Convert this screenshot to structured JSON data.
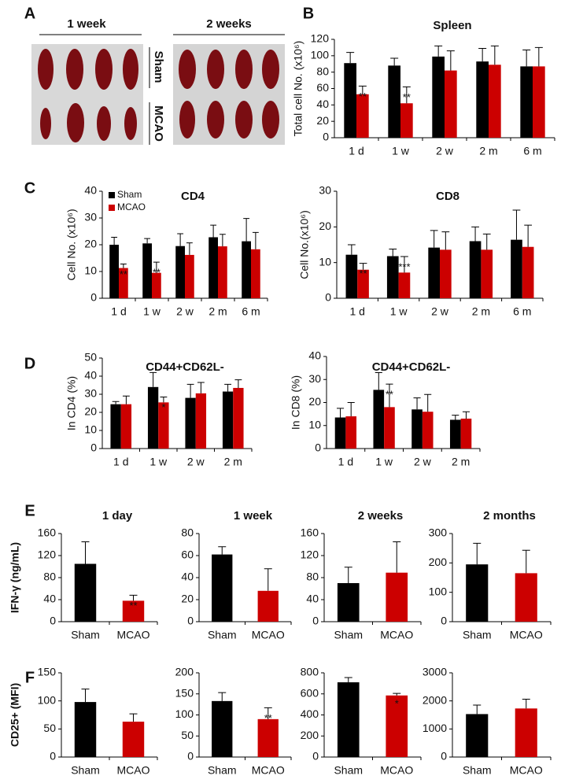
{
  "panel_labels": [
    "A",
    "B",
    "C",
    "D",
    "E",
    "F"
  ],
  "photo": {
    "columns": [
      "1 week",
      "2 weeks"
    ],
    "rows": [
      "Sham",
      "MCAO"
    ]
  },
  "chart_data": [
    {
      "type": "bar",
      "title": "Spleen",
      "y_label": "Total cell No. (x10⁶)",
      "categories": [
        "1 d",
        "1 w",
        "2 w",
        "2 m",
        "6 m"
      ],
      "series": [
        {
          "color": "#000000",
          "values": [
            91,
            88,
            99,
            93,
            87
          ],
          "errors": [
            13,
            9,
            13,
            16,
            20
          ]
        },
        {
          "color": "#cc0000",
          "values": [
            53,
            42,
            82,
            89,
            87
          ],
          "errors": [
            10,
            20,
            24,
            23,
            23
          ],
          "value_annotations": [
            "**",
            "**",
            null,
            null,
            null
          ]
        }
      ],
      "ylim": [
        0,
        120
      ],
      "yticks": [
        0,
        20,
        40,
        60,
        80,
        100,
        120
      ]
    },
    {
      "type": "bar",
      "title": "CD4",
      "y_label": "Cell No. (x10⁶)",
      "legend": "upper left",
      "categories": [
        "1 d",
        "1 w",
        "2 w",
        "2 m",
        "6 m"
      ],
      "series": [
        {
          "name": "Sham",
          "color": "#000000",
          "values": [
            20,
            20.5,
            19.5,
            22.8,
            21.3
          ],
          "errors": [
            2.8,
            1.8,
            4.6,
            4.5,
            8.5
          ]
        },
        {
          "name": "MCAO",
          "color": "#cc0000",
          "values": [
            11.3,
            9.5,
            16.2,
            19.4,
            18.3
          ],
          "errors": [
            1.5,
            4,
            4.5,
            4.5,
            6.3
          ],
          "value_annotations": [
            "**",
            "**",
            null,
            null,
            null
          ]
        }
      ],
      "ylim": [
        0,
        40
      ],
      "yticks": [
        0,
        10,
        20,
        30,
        40
      ]
    },
    {
      "type": "bar",
      "title": "CD8",
      "y_label": "Cell No.(x10⁶)",
      "categories": [
        "1 d",
        "1 w",
        "2 w",
        "2 m",
        "6 m"
      ],
      "series": [
        {
          "color": "#000000",
          "values": [
            12.2,
            11.8,
            14.2,
            16,
            16.4
          ],
          "errors": [
            2.8,
            2,
            4.8,
            4,
            8.3
          ]
        },
        {
          "color": "#cc0000",
          "values": [
            8,
            7.2,
            13.6,
            13.6,
            14.4
          ],
          "errors": [
            1.8,
            4.5,
            5,
            4.4,
            6.1
          ],
          "value_annotations": [
            "**",
            "***",
            null,
            null,
            null
          ]
        }
      ],
      "ylim": [
        0,
        30
      ],
      "yticks": [
        0,
        10,
        20,
        30
      ]
    },
    {
      "type": "bar",
      "title": "CD44+CD62L-",
      "y_label": "In CD4 (%)",
      "categories": [
        "1 d",
        "1 w",
        "2 w",
        "2 m"
      ],
      "series": [
        {
          "color": "#000000",
          "values": [
            24.5,
            34,
            28,
            31.5
          ],
          "errors": [
            1.5,
            8,
            7.5,
            4
          ]
        },
        {
          "color": "#cc0000",
          "values": [
            24.5,
            25.5,
            30.5,
            33.5
          ],
          "errors": [
            4.5,
            3,
            6,
            4.5
          ],
          "value_annotations": [
            null,
            "*",
            null,
            null
          ]
        }
      ],
      "ylim": [
        0,
        50
      ],
      "yticks": [
        0,
        10,
        20,
        30,
        40,
        50
      ]
    },
    {
      "type": "bar",
      "title": "CD44+CD62L-",
      "y_label": "In CD8 (%)",
      "categories": [
        "1 d",
        "1 w",
        "2 w",
        "2 m"
      ],
      "series": [
        {
          "color": "#000000",
          "values": [
            13.5,
            25.5,
            17,
            12.5
          ],
          "errors": [
            4,
            7.5,
            5,
            2
          ]
        },
        {
          "color": "#cc0000",
          "values": [
            14,
            18,
            16,
            13
          ],
          "errors": [
            6,
            10,
            7.5,
            3
          ],
          "value_annotations": [
            null,
            "**",
            null,
            null
          ]
        }
      ],
      "ylim": [
        0,
        40
      ],
      "yticks": [
        0,
        10,
        20,
        30,
        40
      ]
    },
    {
      "type": "bar",
      "title": "1 day",
      "y_label": "IFN-γ (ng/mL)",
      "categories": [
        "Sham",
        "MCAO"
      ],
      "colors": [
        "#000000",
        "#cc0000"
      ],
      "values": [
        105,
        38
      ],
      "errors": [
        40,
        10
      ],
      "value_annotations": [
        null,
        "**"
      ],
      "ylim": [
        0,
        160
      ],
      "yticks": [
        0,
        40,
        80,
        120,
        160
      ]
    },
    {
      "type": "bar",
      "title": "1 week",
      "categories": [
        "Sham",
        "MCAO"
      ],
      "colors": [
        "#000000",
        "#cc0000"
      ],
      "values": [
        61,
        28
      ],
      "errors": [
        7,
        20
      ],
      "ylim": [
        0,
        80
      ],
      "yticks": [
        0,
        20,
        40,
        60,
        80
      ]
    },
    {
      "type": "bar",
      "title": "2 weeks",
      "categories": [
        "Sham",
        "MCAO"
      ],
      "colors": [
        "#000000",
        "#cc0000"
      ],
      "values": [
        70,
        89
      ],
      "errors": [
        29,
        56
      ],
      "ylim": [
        0,
        160
      ],
      "yticks": [
        0,
        40,
        80,
        120,
        160
      ]
    },
    {
      "type": "bar",
      "title": "2 months",
      "categories": [
        "Sham",
        "MCAO"
      ],
      "colors": [
        "#000000",
        "#cc0000"
      ],
      "values": [
        195,
        165
      ],
      "errors": [
        72,
        78
      ],
      "ylim": [
        0,
        300
      ],
      "yticks": [
        0,
        100,
        200,
        300
      ]
    },
    {
      "type": "bar",
      "y_label": "CD25+ (MFI)",
      "categories": [
        "Sham",
        "MCAO"
      ],
      "colors": [
        "#000000",
        "#cc0000"
      ],
      "values": [
        98,
        63
      ],
      "errors": [
        23,
        14
      ],
      "ylim": [
        0,
        150
      ],
      "yticks": [
        0,
        50,
        100,
        150
      ]
    },
    {
      "type": "bar",
      "categories": [
        "Sham",
        "MCAO"
      ],
      "colors": [
        "#000000",
        "#cc0000"
      ],
      "values": [
        133,
        90
      ],
      "errors": [
        20,
        27
      ],
      "value_annotations": [
        null,
        "**"
      ],
      "ylim": [
        0,
        200
      ],
      "yticks": [
        0,
        50,
        100,
        150,
        200
      ]
    },
    {
      "type": "bar",
      "categories": [
        "Sham",
        "MCAO"
      ],
      "colors": [
        "#000000",
        "#cc0000"
      ],
      "values": [
        710,
        585
      ],
      "errors": [
        45,
        20
      ],
      "value_annotations": [
        null,
        "*"
      ],
      "ylim": [
        0,
        800
      ],
      "yticks": [
        0,
        200,
        400,
        600,
        800
      ]
    },
    {
      "type": "bar",
      "categories": [
        "Sham",
        "MCAO"
      ],
      "colors": [
        "#000000",
        "#cc0000"
      ],
      "values": [
        1530,
        1730
      ],
      "errors": [
        320,
        330
      ],
      "ylim": [
        0,
        3000
      ],
      "yticks": [
        0,
        1000,
        2000,
        3000
      ]
    }
  ]
}
